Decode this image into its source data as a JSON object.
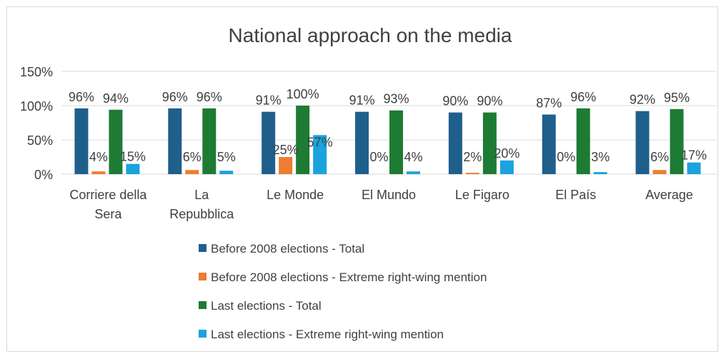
{
  "chart_data": {
    "type": "bar",
    "title": "National approach on the media",
    "categories": [
      [
        "Corriere della",
        "Sera"
      ],
      [
        "La",
        "Repubblica"
      ],
      [
        "Le Monde"
      ],
      [
        "El Mundo"
      ],
      [
        "Le Figaro"
      ],
      [
        "El País"
      ],
      [
        "Average"
      ]
    ],
    "ylim": [
      0,
      150
    ],
    "yticks": [
      0,
      50,
      100,
      150
    ],
    "ytick_labels": [
      "0%",
      "50%",
      "100%",
      "150%"
    ],
    "grid": true,
    "legend_position": "bottom",
    "series": [
      {
        "name": "Before 2008 elections - Total",
        "color": "#1f5f8b",
        "values": [
          96,
          96,
          91,
          91,
          90,
          87,
          92
        ],
        "labels": [
          "96%",
          "96%",
          "91%",
          "91%",
          "90%",
          "87%",
          "92%"
        ]
      },
      {
        "name": "Before 2008 elections - Extreme right-wing mention",
        "color": "#ed7d31",
        "values": [
          4,
          6,
          25,
          0,
          2,
          0,
          6
        ],
        "labels": [
          "4%",
          "6%",
          "25%",
          "0%",
          "2%",
          "0%",
          "6%"
        ]
      },
      {
        "name": "Last elections - Total",
        "color": "#1e7b34",
        "values": [
          94,
          96,
          100,
          93,
          90,
          96,
          95
        ],
        "labels": [
          "94%",
          "96%",
          "100%",
          "93%",
          "90%",
          "96%",
          "95%"
        ]
      },
      {
        "name": "Last elections - Extreme right-wing mention",
        "color": "#1aa3dc",
        "values": [
          15,
          5,
          57,
          4,
          20,
          3,
          17
        ],
        "labels": [
          "15%",
          "5%",
          "57%",
          "4%",
          "20%",
          "3%",
          "17%"
        ]
      }
    ]
  }
}
